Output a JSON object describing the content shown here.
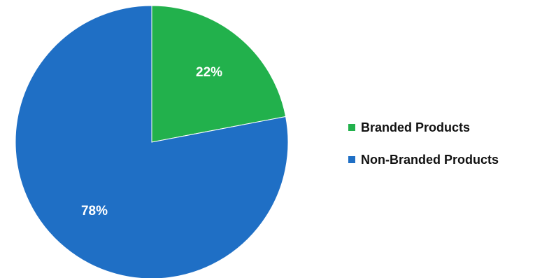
{
  "chart_data": {
    "type": "pie",
    "categories": [
      "Branded Products",
      "Non-Branded Products"
    ],
    "values": [
      22,
      78
    ],
    "labels": [
      "22%",
      "78%"
    ],
    "colors": [
      "#22B14C",
      "#1F6FC5"
    ],
    "legend_position": "right",
    "start_angle": "12 o'clock",
    "direction": "clockwise"
  }
}
